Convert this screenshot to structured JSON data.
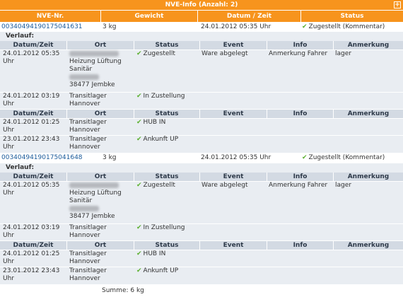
{
  "title": "NVE-Info (Anzahl: 2)",
  "columns": {
    "nve": "NVE-Nr.",
    "weight": "Gewicht",
    "date": "Datum / Zeit",
    "status": "Status"
  },
  "history_label": "Verlauf:",
  "history_columns": {
    "date": "Datum/Zeit",
    "ort": "Ort",
    "status": "Status",
    "event": "Event",
    "info": "Info",
    "note": "Anmerkung"
  },
  "shipments": [
    {
      "nve": "00340494190175041631",
      "weight": "3 kg",
      "date": "24.01.2012 05:35 Uhr",
      "status": "Zugestellt (Kommentar)",
      "hist1": [
        {
          "date": "24.01.2012 05:35 Uhr",
          "ort1": "Heizung Lüftung Sanitär",
          "ort2": "38477 Jembke",
          "status": "Zugestellt",
          "event": "Ware abgelegt",
          "info": "Anmerkung Fahrer",
          "note": "lager"
        },
        {
          "date": "24.01.2012 03:19 Uhr",
          "ort": "Transitlager Hannover",
          "status": "In Zustellung"
        }
      ],
      "hist2": [
        {
          "date": "24.01.2012 01:25 Uhr",
          "ort": "Transitlager Hannover",
          "status": "HUB IN"
        },
        {
          "date": "23.01.2012 23:43 Uhr",
          "ort": "Transitlager Hannover",
          "status": "Ankunft UP"
        }
      ]
    },
    {
      "nve": "00340494190175041648",
      "weight": "3 kg",
      "date": "24.01.2012 05:35 Uhr",
      "status": "Zugestellt (Kommentar)",
      "hist1": [
        {
          "date": "24.01.2012 05:35 Uhr",
          "ort1": "Heizung Lüftung Sanitär",
          "ort2": "38477 Jembke",
          "status": "Zugestellt",
          "event": "Ware abgelegt",
          "info": "Anmerkung Fahrer",
          "note": "lager"
        },
        {
          "date": "24.01.2012 03:19 Uhr",
          "ort": "Transitlager Hannover",
          "status": "In Zustellung"
        }
      ],
      "hist2": [
        {
          "date": "24.01.2012 01:25 Uhr",
          "ort": "Transitlager Hannover",
          "status": "HUB IN"
        },
        {
          "date": "23.01.2012 23:43 Uhr",
          "ort": "Transitlager Hannover",
          "status": "Ankunft UP"
        }
      ]
    }
  ],
  "summary": "Summe: 6 kg",
  "colors": {
    "accent": "#f7941d",
    "check": "#5cb030",
    "link": "#1a5a9a",
    "block_bg": "#e9edf2",
    "block_header": "#d3dae3"
  },
  "icons": {
    "expand": "plus-box-icon",
    "status": "check-icon"
  }
}
